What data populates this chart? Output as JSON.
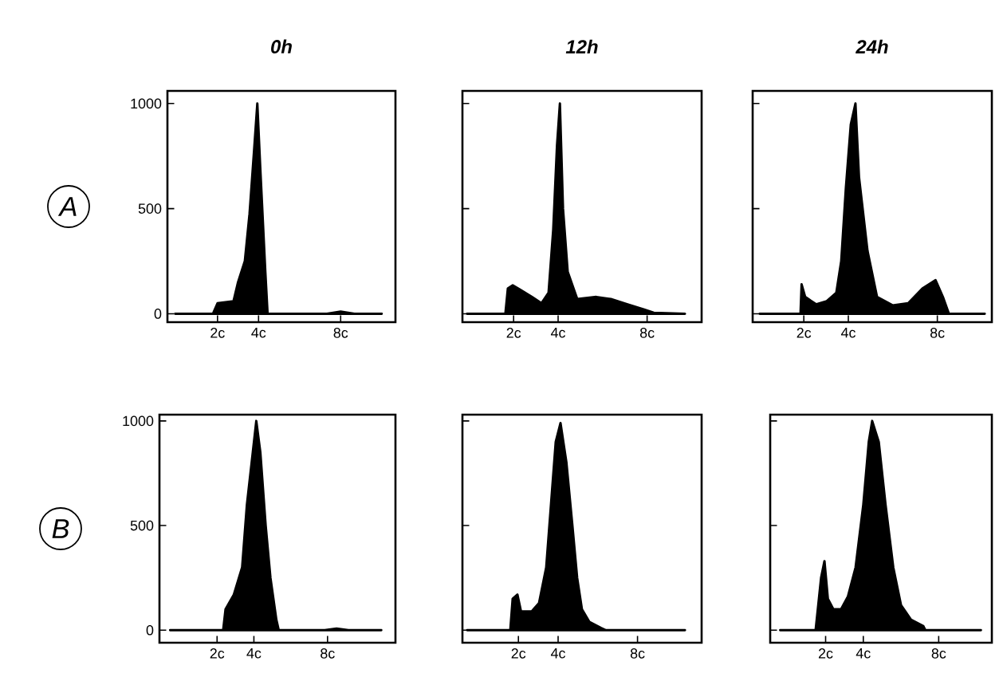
{
  "chart_data": [
    {
      "type": "area",
      "title": "0h",
      "annotations": [
        "A"
      ],
      "color": "#000000",
      "tick_labels": true,
      "x": [
        -0.06,
        1.78,
        2.0,
        2.78,
        3.0,
        3.33,
        3.56,
        3.78,
        3.94,
        4.08,
        4.33,
        4.44,
        7.33,
        8.0,
        8.67,
        10.0
      ],
      "values": [
        0,
        0,
        50,
        60,
        150,
        250,
        475,
        775,
        1000,
        700,
        200,
        0,
        0,
        10,
        0,
        0
      ],
      "xlim": [
        -0.44,
        10.67
      ],
      "ylim": [
        -40,
        1060
      ],
      "xticks": [
        {
          "value": 2,
          "label": "2c"
        },
        {
          "value": 4,
          "label": "4c"
        },
        {
          "value": 8,
          "label": "8c"
        }
      ],
      "yticks": [
        0,
        500,
        1000
      ]
    },
    {
      "type": "area",
      "title": "12h",
      "color": "#000000",
      "tick_labels": "x",
      "x": [
        -0.09,
        1.63,
        1.74,
        1.96,
        2.28,
        2.82,
        3.25,
        3.57,
        3.78,
        3.95,
        4.08,
        4.22,
        4.43,
        4.86,
        5.72,
        6.37,
        7.12,
        7.87,
        8.3,
        9.7
      ],
      "values": [
        0,
        0,
        120,
        135,
        115,
        80,
        50,
        100,
        400,
        800,
        1000,
        500,
        200,
        70,
        80,
        70,
        45,
        20,
        5,
        0
      ],
      "xlim": [
        -0.3,
        10.45
      ],
      "ylim": [
        -40,
        1060
      ],
      "xticks": [
        {
          "value": 2,
          "label": "2c"
        },
        {
          "value": 4,
          "label": "4c"
        },
        {
          "value": 8,
          "label": "8c"
        }
      ],
      "yticks": [
        0,
        500,
        1000
      ]
    },
    {
      "type": "area",
      "title": "24h",
      "color": "#000000",
      "tick_labels": "x",
      "x": [
        0.02,
        1.85,
        1.9,
        2.06,
        2.55,
        3.03,
        3.46,
        3.68,
        3.89,
        4.11,
        4.32,
        4.48,
        4.86,
        5.29,
        5.99,
        6.69,
        7.33,
        7.92,
        8.25,
        8.52,
        10.13
      ],
      "values": [
        0,
        0,
        140,
        80,
        45,
        60,
        100,
        250,
        600,
        900,
        1000,
        650,
        300,
        80,
        40,
        50,
        120,
        160,
        80,
        0,
        0
      ],
      "xlim": [
        -0.3,
        10.45
      ],
      "ylim": [
        -40,
        1060
      ],
      "xticks": [
        {
          "value": 2,
          "label": "2c"
        },
        {
          "value": 4,
          "label": "4c"
        },
        {
          "value": 8,
          "label": "8c"
        }
      ],
      "yticks": [
        0,
        500,
        1000
      ]
    },
    {
      "type": "area",
      "annotations": [
        "B"
      ],
      "color": "#000000",
      "tick_labels": true,
      "x": [
        -0.55,
        2.33,
        2.46,
        2.91,
        3.36,
        3.62,
        3.94,
        4.13,
        4.35,
        4.64,
        4.9,
        5.22,
        5.35,
        7.85,
        8.49,
        9.13,
        10.92
      ],
      "values": [
        0,
        0,
        100,
        170,
        300,
        600,
        850,
        1000,
        850,
        500,
        250,
        50,
        0,
        0,
        8,
        0,
        0
      ],
      "xlim": [
        -1.13,
        11.69
      ],
      "ylim": [
        -60,
        1030
      ],
      "xticks": [
        {
          "value": 2,
          "label": "2c"
        },
        {
          "value": 4,
          "label": "4c"
        },
        {
          "value": 8,
          "label": "8c"
        }
      ],
      "yticks": [
        0,
        500,
        1000
      ]
    },
    {
      "type": "area",
      "color": "#000000",
      "tick_labels": "x",
      "x": [
        -0.58,
        1.59,
        1.71,
        1.95,
        2.13,
        2.67,
        3.04,
        3.4,
        3.64,
        3.88,
        4.12,
        4.42,
        4.72,
        4.96,
        5.2,
        5.57,
        6.17,
        6.41,
        10.39
      ],
      "values": [
        0,
        0,
        150,
        170,
        90,
        90,
        130,
        300,
        600,
        900,
        990,
        800,
        500,
        250,
        100,
        40,
        10,
        0,
        0
      ],
      "xlim": [
        -0.82,
        11.23
      ],
      "ylim": [
        -60,
        1030
      ],
      "xticks": [
        {
          "value": 2,
          "label": "2c"
        },
        {
          "value": 4,
          "label": "4c"
        },
        {
          "value": 8,
          "label": "8c"
        }
      ],
      "yticks": [
        0,
        500,
        1000
      ]
    },
    {
      "type": "area",
      "color": "#000000",
      "tick_labels": "x",
      "x": [
        -0.41,
        1.47,
        1.76,
        1.94,
        2.12,
        2.41,
        2.82,
        3.18,
        3.59,
        4.0,
        4.29,
        4.47,
        4.82,
        5.18,
        5.59,
        6.0,
        6.53,
        7.18,
        7.29,
        10.24
      ],
      "values": [
        0,
        0,
        250,
        330,
        150,
        100,
        100,
        160,
        300,
        600,
        900,
        1000,
        900,
        600,
        300,
        120,
        50,
        20,
        0,
        0
      ],
      "xlim": [
        -0.94,
        10.82
      ],
      "ylim": [
        -60,
        1030
      ],
      "xticks": [
        {
          "value": 2,
          "label": "2c"
        },
        {
          "value": 4,
          "label": "4c"
        },
        {
          "value": 8,
          "label": "8c"
        }
      ],
      "yticks": [
        0,
        500,
        1000
      ]
    }
  ]
}
